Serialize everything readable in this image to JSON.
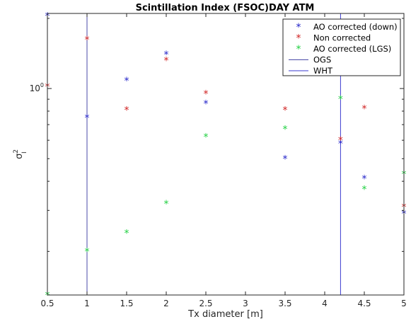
{
  "chart_data": {
    "type": "scatter",
    "title": "Scintillation Index (FSOC)DAY ATM",
    "xlabel": "Tx diameter [m]",
    "ylabel": "σ",
    "ylabel_sup": "2",
    "ylabel_sub": "I",
    "xlim": [
      0.5,
      5
    ],
    "ylim": [
      0.13,
      2.1
    ],
    "yscale": "log",
    "x_ticks": [
      0.5,
      1,
      1.5,
      2,
      2.5,
      3,
      3.5,
      4,
      4.5,
      5
    ],
    "x_tick_labels": [
      "0.5",
      "1",
      "1.5",
      "2",
      "2.5",
      "3",
      "3.5",
      "4",
      "4.5",
      "5"
    ],
    "y_tick_main": "10",
    "y_tick_exp": "0",
    "y_tick_value": 1.0,
    "grid": false,
    "legend_position": "top-right",
    "series": [
      {
        "name": "AO corrected (down)",
        "marker": "*",
        "color": "#2020c8",
        "x": [
          0.5,
          1,
          1.5,
          2,
          2.5,
          3.5,
          4.2,
          4.5,
          5
        ],
        "y": [
          2.05,
          0.75,
          1.08,
          1.4,
          0.86,
          0.5,
          0.58,
          0.41,
          0.29
        ]
      },
      {
        "name": "Non corrected",
        "marker": "*",
        "color": "#d02020",
        "x": [
          0.5,
          1,
          1.5,
          2,
          2.5,
          3.5,
          4.2,
          4.5,
          5
        ],
        "y": [
          1.02,
          1.62,
          0.81,
          1.32,
          0.95,
          0.81,
          0.6,
          0.82,
          0.31
        ]
      },
      {
        "name": "AO corrected (LGS)",
        "marker": "*",
        "color": "#20d040",
        "x": [
          0.5,
          1,
          1.5,
          2,
          2.5,
          3.5,
          4.2,
          4.5,
          5
        ],
        "y": [
          0.13,
          0.2,
          0.24,
          0.32,
          0.62,
          0.67,
          0.9,
          0.37,
          0.43
        ]
      }
    ],
    "reference_lines": [
      {
        "name": "OGS",
        "x": 1.0,
        "color": "#4a4aa8"
      },
      {
        "name": "WHT",
        "x": 4.2,
        "color": "#3a3ad0"
      }
    ]
  }
}
